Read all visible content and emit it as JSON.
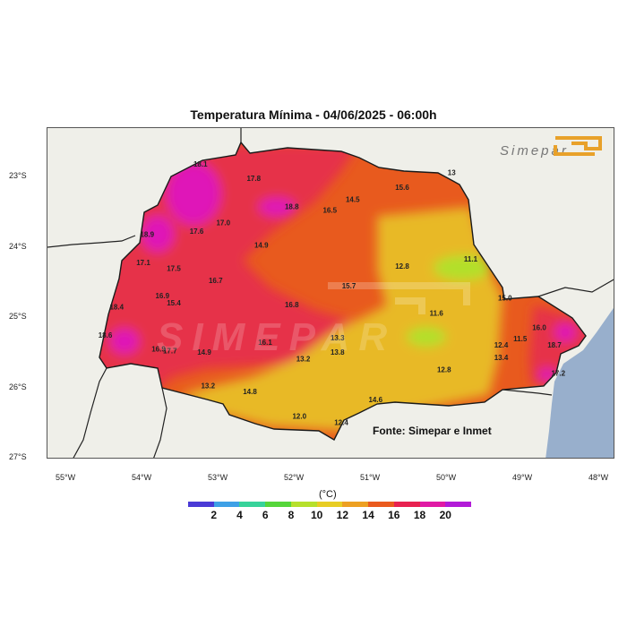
{
  "title": "Temperatura Mínima - 04/06/2025 - 06:00h",
  "brand": {
    "name": "Simepar",
    "watermark": "SIMEPAR"
  },
  "source": "Fonte: Simepar e Inmet",
  "legend": {
    "unit": "(°C)",
    "ticks": [
      "2",
      "4",
      "6",
      "8",
      "10",
      "12",
      "14",
      "16",
      "18",
      "20"
    ],
    "colors": [
      "#4a3ad6",
      "#3ea0e6",
      "#37d39a",
      "#55d63a",
      "#b6e02c",
      "#e8cd24",
      "#eda022",
      "#ea5a1e",
      "#e82250",
      "#e01aa5",
      "#b21bd8"
    ]
  },
  "axes": {
    "lon_ticks": [
      "55°W",
      "54°W",
      "53°W",
      "52°W",
      "51°W",
      "50°W",
      "49°W",
      "48°W"
    ],
    "lat_ticks": [
      "23°S",
      "24°S",
      "25°S",
      "26°S",
      "27°S"
    ]
  },
  "colors": {
    "ocean": "#98afcc",
    "land_outside": "#efefe9",
    "warm_red": "#e63049",
    "orange": "#e85a1e",
    "yellow": "#e8b927",
    "green": "#b2e02c",
    "magenta": "#df19b8"
  },
  "stations": [
    {
      "value": "18.1",
      "lon": -53.25,
      "lat": -22.85
    },
    {
      "value": "17.8",
      "lon": -52.55,
      "lat": -23.05
    },
    {
      "value": "15.6",
      "lon": -50.6,
      "lat": -23.18
    },
    {
      "value": "13",
      "lon": -49.95,
      "lat": -22.97
    },
    {
      "value": "14.5",
      "lon": -51.25,
      "lat": -23.35
    },
    {
      "value": "18.8",
      "lon": -52.05,
      "lat": -23.45
    },
    {
      "value": "16.5",
      "lon": -51.55,
      "lat": -23.5
    },
    {
      "value": "17.0",
      "lon": -52.95,
      "lat": -23.68
    },
    {
      "value": "17.6",
      "lon": -53.3,
      "lat": -23.8
    },
    {
      "value": "18.9",
      "lon": -53.95,
      "lat": -23.85
    },
    {
      "value": "14.9",
      "lon": -52.45,
      "lat": -24.0
    },
    {
      "value": "11.1",
      "lon": -49.7,
      "lat": -24.2
    },
    {
      "value": "17.1",
      "lon": -54.0,
      "lat": -24.25
    },
    {
      "value": "17.5",
      "lon": -53.6,
      "lat": -24.33
    },
    {
      "value": "12.8",
      "lon": -50.6,
      "lat": -24.3
    },
    {
      "value": "16.7",
      "lon": -53.05,
      "lat": -24.5
    },
    {
      "value": "15.7",
      "lon": -51.3,
      "lat": -24.58
    },
    {
      "value": "16.9",
      "lon": -53.75,
      "lat": -24.72
    },
    {
      "value": "15.4",
      "lon": -53.6,
      "lat": -24.82
    },
    {
      "value": "18.4",
      "lon": -54.35,
      "lat": -24.88
    },
    {
      "value": "16.8",
      "lon": -52.05,
      "lat": -24.85
    },
    {
      "value": "15.0",
      "lon": -49.25,
      "lat": -24.75
    },
    {
      "value": "11.6",
      "lon": -50.15,
      "lat": -24.97
    },
    {
      "value": "16.0",
      "lon": -48.8,
      "lat": -25.17
    },
    {
      "value": "18.6",
      "lon": -54.5,
      "lat": -25.28
    },
    {
      "value": "13.3",
      "lon": -51.45,
      "lat": -25.32
    },
    {
      "value": "16.1",
      "lon": -52.4,
      "lat": -25.38
    },
    {
      "value": "11.5",
      "lon": -49.05,
      "lat": -25.33
    },
    {
      "value": "12.4",
      "lon": -49.3,
      "lat": -25.42
    },
    {
      "value": "18.7",
      "lon": -48.6,
      "lat": -25.42
    },
    {
      "value": "16.9",
      "lon": -53.8,
      "lat": -25.48
    },
    {
      "value": "17.7",
      "lon": -53.65,
      "lat": -25.5
    },
    {
      "value": "14.9",
      "lon": -53.2,
      "lat": -25.52
    },
    {
      "value": "13.8",
      "lon": -51.45,
      "lat": -25.52
    },
    {
      "value": "13.2",
      "lon": -51.9,
      "lat": -25.62
    },
    {
      "value": "13.4",
      "lon": -49.3,
      "lat": -25.6
    },
    {
      "value": "12.8",
      "lon": -50.05,
      "lat": -25.77
    },
    {
      "value": "17.2",
      "lon": -48.55,
      "lat": -25.82
    },
    {
      "value": "13.2",
      "lon": -53.15,
      "lat": -26.0
    },
    {
      "value": "14.8",
      "lon": -52.6,
      "lat": -26.08
    },
    {
      "value": "14.6",
      "lon": -50.95,
      "lat": -26.2
    },
    {
      "value": "12.0",
      "lon": -51.95,
      "lat": -26.43
    },
    {
      "value": "12.4",
      "lon": -51.4,
      "lat": -26.52
    }
  ]
}
